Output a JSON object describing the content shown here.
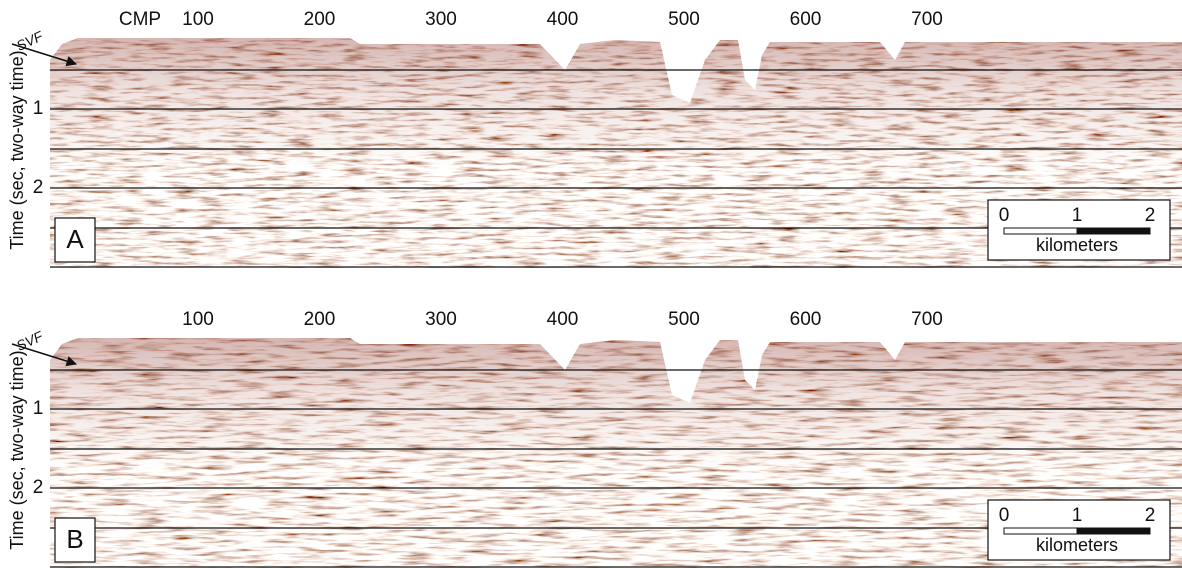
{
  "panels": [
    {
      "letter": "A",
      "cmp_label": "CMP",
      "cmp_ticks": [
        "100",
        "200",
        "300",
        "400",
        "500",
        "600",
        "700"
      ],
      "time_ticks": [
        "1",
        "2"
      ],
      "axis_title": "Time (sec, two-way time)",
      "fault_label": "SVF",
      "scale": {
        "ticks": [
          "0",
          "1",
          "2"
        ],
        "unit": "kilometers"
      }
    },
    {
      "letter": "B",
      "cmp_ticks": [
        "100",
        "200",
        "300",
        "400",
        "500",
        "600",
        "700"
      ],
      "time_ticks": [
        "1",
        "2"
      ],
      "axis_title": "Time (sec, two-way time)",
      "fault_label": "SVF",
      "scale": {
        "ticks": [
          "0",
          "1",
          "2"
        ],
        "unit": "kilometers"
      }
    }
  ]
}
